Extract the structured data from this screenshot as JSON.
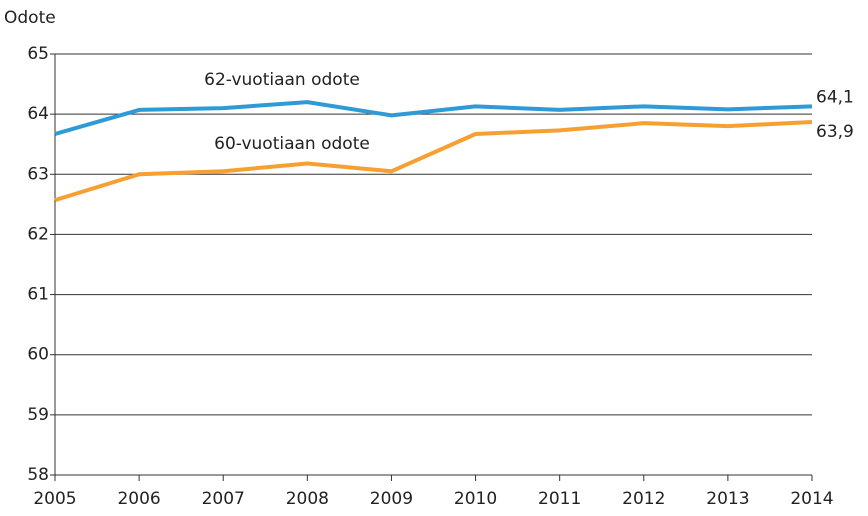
{
  "chart_data": {
    "type": "line",
    "y_label": "Odote",
    "x": [
      2005,
      2006,
      2007,
      2008,
      2009,
      2010,
      2011,
      2012,
      2013,
      2014
    ],
    "xlim": [
      2005,
      2014
    ],
    "xticks": [
      2005,
      2006,
      2007,
      2008,
      2009,
      2010,
      2011,
      2012,
      2013,
      2014
    ],
    "ylim": [
      58,
      65
    ],
    "yticks": [
      58,
      59,
      60,
      61,
      62,
      63,
      64,
      65
    ],
    "grid": true,
    "series": [
      {
        "name": "62-vuotiaan odote",
        "color": "#2e9ad6",
        "values": [
          63.67,
          64.07,
          64.1,
          64.2,
          63.98,
          64.13,
          64.07,
          64.13,
          64.08,
          64.13
        ],
        "value_labels": [
          null,
          null,
          null,
          null,
          null,
          null,
          null,
          null,
          null,
          "64,1"
        ]
      },
      {
        "name": "60-vuotiaan odote",
        "color": "#f5a031",
        "values": [
          62.57,
          63.0,
          63.05,
          63.18,
          63.05,
          63.67,
          63.73,
          63.85,
          63.8,
          63.87
        ],
        "value_labels": [
          null,
          null,
          null,
          null,
          null,
          null,
          null,
          null,
          null,
          "63,9"
        ]
      }
    ]
  }
}
